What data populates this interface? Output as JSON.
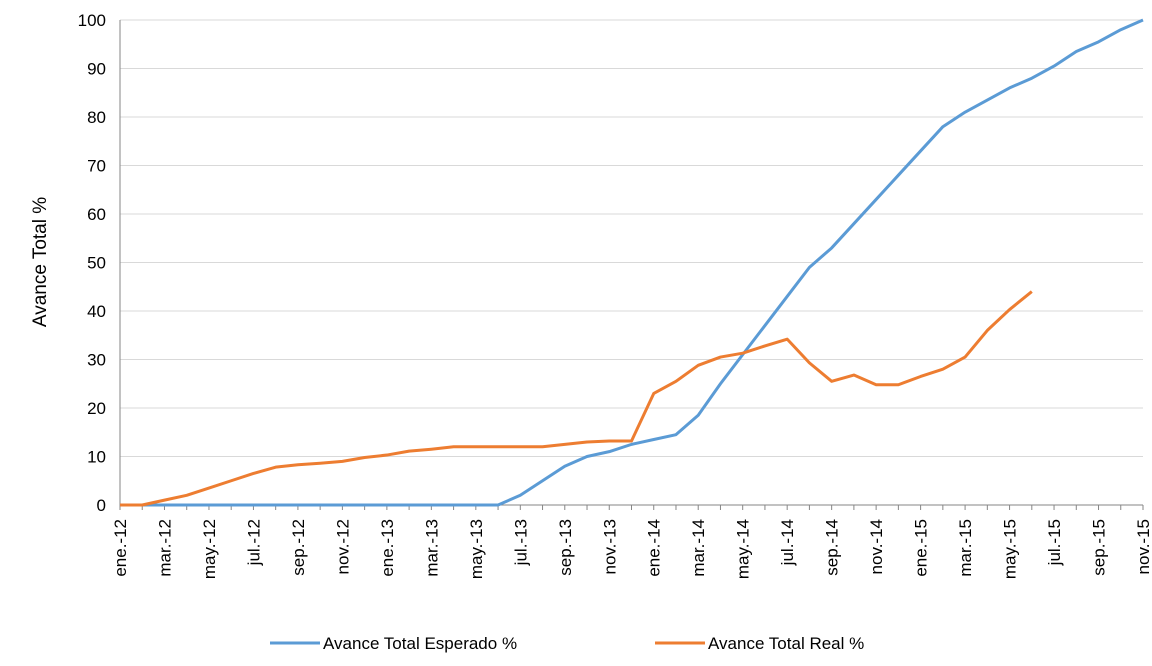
{
  "chart_data": {
    "type": "line",
    "y_label": "Avance Total %",
    "categories": [
      "ene.-12",
      null,
      "mar.-12",
      null,
      "may.-12",
      null,
      "jul.-12",
      null,
      "sep.-12",
      null,
      "nov.-12",
      null,
      "ene.-13",
      null,
      "mar.-13",
      null,
      "may.-13",
      null,
      "jul.-13",
      null,
      "sep.-13",
      null,
      "nov.-13",
      null,
      "ene.-14",
      null,
      "mar.-14",
      null,
      "may.-14",
      null,
      "jul.-14",
      null,
      "sep.-14",
      null,
      "nov.-14",
      null,
      "ene.-15",
      null,
      "mar.-15",
      null,
      "may.-15",
      null,
      "jul.-15",
      null,
      "sep.-15",
      null,
      "nov.-15"
    ],
    "series": [
      {
        "name": "Avance Total Esperado %",
        "color": "#5b9bd5",
        "values": [
          0,
          0,
          0,
          0,
          0,
          0,
          0,
          0,
          0,
          0,
          0,
          0,
          0,
          0,
          0,
          0,
          0,
          0,
          2,
          5,
          8,
          10,
          11,
          12.5,
          13.5,
          14.5,
          18.5,
          25,
          31,
          37,
          43,
          49,
          53,
          58,
          63,
          68,
          73,
          78,
          81,
          83.5,
          86,
          88,
          90.5,
          93.5,
          95.5,
          98,
          100
        ]
      },
      {
        "name": "Avance Total Real %",
        "color": "#ed7d31",
        "values": [
          0,
          0,
          1,
          2,
          3.5,
          5,
          6.5,
          7.8,
          8.3,
          8.6,
          9,
          9.8,
          10.3,
          11.1,
          11.5,
          12,
          12,
          12,
          12,
          12,
          12.5,
          13,
          13.2,
          13.2,
          23,
          25.5,
          28.8,
          30.5,
          31.3,
          32.8,
          34.2,
          29.3,
          25.5,
          26.8,
          24.8,
          24.8,
          26.5,
          28,
          30.5,
          36,
          40.3,
          44,
          null,
          null,
          null,
          null,
          null
        ]
      }
    ],
    "ylim": [
      0,
      100
    ],
    "yticks": [
      0,
      10,
      20,
      30,
      40,
      50,
      60,
      70,
      80,
      90,
      100
    ],
    "grid": true,
    "legend": "bottom"
  }
}
